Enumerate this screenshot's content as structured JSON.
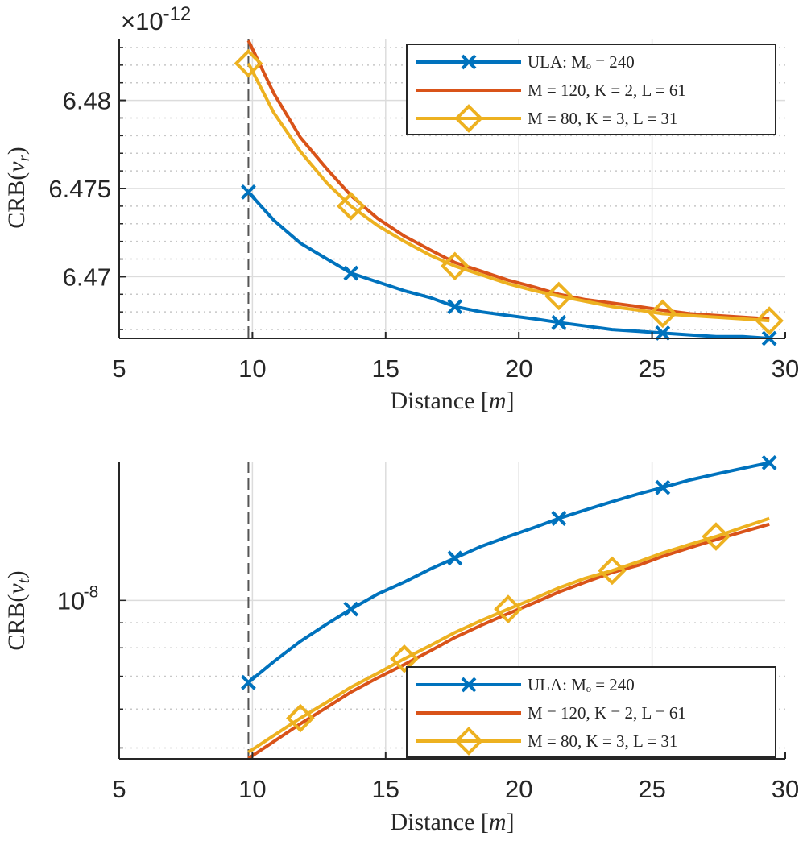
{
  "chart_data": [
    {
      "type": "line",
      "panel": "top",
      "xlabel": "Distance [m]",
      "ylabel": "CRB(v_r)",
      "ylabel_main": "CRB(",
      "ylabel_var": "v",
      "ylabel_sub": "r",
      "ylabel_close": ")",
      "x_unit": "m",
      "y_exponent_label": "×10",
      "y_exponent_power": "-12",
      "xlim": [
        5,
        30
      ],
      "ylim": [
        6.4665,
        6.4835
      ],
      "xticks": [
        5,
        10,
        15,
        20,
        25,
        30
      ],
      "xtick_labels": [
        "5",
        "10",
        "15",
        "20",
        "25",
        "30"
      ],
      "yticks": [
        6.47,
        6.475,
        6.48
      ],
      "ytick_labels": [
        "6.47",
        "6.475",
        "6.48"
      ],
      "grid": true,
      "legend_position": "top-right",
      "vline_x": 9.85,
      "series": [
        {
          "name": "ULA: M_o = 240",
          "legend_label": "ULA: Mₒ = 240",
          "color": "#0072BD",
          "marker": "x",
          "x": [
            9.85,
            10.8,
            11.8,
            12.8,
            13.7,
            14.7,
            15.7,
            16.7,
            17.6,
            18.6,
            19.6,
            20.6,
            21.5,
            22.5,
            23.5,
            24.5,
            25.4,
            26.4,
            27.4,
            28.4,
            29.4
          ],
          "y": [
            6.4748,
            6.4732,
            6.4719,
            6.471,
            6.4702,
            6.4697,
            6.4692,
            6.4688,
            6.4683,
            6.468,
            6.4678,
            6.4676,
            6.4674,
            6.4672,
            6.467,
            6.4669,
            6.4668,
            6.4667,
            6.4666,
            6.4666,
            6.4665
          ],
          "marker_x": [
            9.85,
            13.7,
            17.6,
            21.5,
            25.4,
            29.4
          ],
          "marker_y": [
            6.4748,
            6.4702,
            6.4683,
            6.4674,
            6.4668,
            6.4665
          ]
        },
        {
          "name": "M = 120, K = 2, L = 61",
          "legend_label": "M = 120, K = 2, L = 61",
          "color": "#D95319",
          "marker": "none",
          "x": [
            9.85,
            10.8,
            11.8,
            12.8,
            13.7,
            14.7,
            15.7,
            16.7,
            17.6,
            18.6,
            19.6,
            20.6,
            21.5,
            22.5,
            23.5,
            24.5,
            25.4,
            26.4,
            27.4,
            28.4,
            29.4
          ],
          "y": [
            6.4834,
            6.4804,
            6.4779,
            6.4761,
            6.4746,
            6.4733,
            6.4723,
            6.4715,
            6.4708,
            6.4703,
            6.4698,
            6.4694,
            6.469,
            6.4687,
            6.4685,
            6.4683,
            6.4681,
            6.4679,
            6.4678,
            6.4677,
            6.4676
          ]
        },
        {
          "name": "M = 80, K = 3, L = 31",
          "legend_label": "M = 80, K = 3, L = 31",
          "color": "#EDB120",
          "marker": "diamond",
          "x": [
            9.85,
            10.8,
            11.8,
            12.8,
            13.7,
            14.7,
            15.7,
            16.7,
            17.6,
            18.6,
            19.6,
            20.6,
            21.5,
            22.5,
            23.5,
            24.5,
            25.4,
            26.4,
            27.4,
            28.4,
            29.4
          ],
          "y": [
            6.4821,
            6.4793,
            6.4771,
            6.4753,
            6.474,
            6.4729,
            6.472,
            6.4712,
            6.4706,
            6.4701,
            6.4696,
            6.4692,
            6.4689,
            6.4686,
            6.4683,
            6.4681,
            6.4679,
            6.4678,
            6.4677,
            6.4676,
            6.4675
          ],
          "marker_x": [
            9.85,
            13.7,
            17.6,
            21.5,
            25.4,
            29.4
          ],
          "marker_y": [
            6.4821,
            6.474,
            6.4706,
            6.4689,
            6.4679,
            6.4675
          ]
        }
      ]
    },
    {
      "type": "line",
      "panel": "bottom",
      "xlabel": "Distance [m]",
      "ylabel": "CRB(v_t)",
      "ylabel_main": "CRB(",
      "ylabel_var": "v",
      "ylabel_sub": "t",
      "ylabel_close": ")",
      "x_unit": "m",
      "yscale": "log",
      "xlim": [
        5,
        30
      ],
      "ylim": [
        4.75e-09,
        1.92e-08
      ],
      "xticks": [
        5,
        10,
        15,
        20,
        25,
        30
      ],
      "xtick_labels": [
        "5",
        "10",
        "15",
        "20",
        "25",
        "30"
      ],
      "yticks": [
        1e-08
      ],
      "ytick_labels": [
        "10"
      ],
      "ytick_exp": "-8",
      "grid": true,
      "legend_position": "bottom-right",
      "vline_x": 9.85,
      "series": [
        {
          "name": "ULA: M_o = 240",
          "legend_label": "ULA: Mₒ = 240",
          "color": "#0072BD",
          "marker": "x",
          "x": [
            9.85,
            10.8,
            11.8,
            12.8,
            13.7,
            14.7,
            15.7,
            16.7,
            17.6,
            18.6,
            19.6,
            20.6,
            21.5,
            22.5,
            23.5,
            24.5,
            25.4,
            26.4,
            27.4,
            28.4,
            29.4
          ],
          "y": [
            6.8e-09,
            7.5e-09,
            8.25e-09,
            8.95e-09,
            9.6e-09,
            1.03e-08,
            1.09e-08,
            1.16e-08,
            1.22e-08,
            1.29e-08,
            1.35e-08,
            1.41e-08,
            1.47e-08,
            1.53e-08,
            1.59e-08,
            1.65e-08,
            1.7e-08,
            1.76e-08,
            1.81e-08,
            1.86e-08,
            1.91e-08
          ],
          "marker_x": [
            9.85,
            13.7,
            17.6,
            21.5,
            25.4,
            29.4
          ],
          "marker_y": [
            6.8e-09,
            9.6e-09,
            1.22e-08,
            1.47e-08,
            1.7e-08,
            1.91e-08
          ]
        },
        {
          "name": "M = 120, K = 2, L = 61",
          "legend_label": "M = 120, K = 2, L = 61",
          "color": "#D95319",
          "marker": "none",
          "x": [
            9.85,
            10.8,
            11.8,
            12.8,
            13.7,
            14.7,
            15.7,
            16.7,
            17.6,
            18.6,
            19.6,
            20.6,
            21.5,
            22.5,
            23.5,
            24.5,
            25.4,
            26.4,
            27.4,
            28.4,
            29.4
          ],
          "y": [
            4.76e-09,
            5.15e-09,
            5.6e-09,
            6.05e-09,
            6.5e-09,
            6.95e-09,
            7.4e-09,
            7.9e-09,
            8.4e-09,
            8.9e-09,
            9.4e-09,
            9.9e-09,
            1.04e-08,
            1.09e-08,
            1.14e-08,
            1.18e-08,
            1.23e-08,
            1.28e-08,
            1.33e-08,
            1.38e-08,
            1.43e-08
          ]
        },
        {
          "name": "M = 80, K = 3, L = 31",
          "legend_label": "M = 80, K = 3, L = 31",
          "color": "#EDB120",
          "marker": "diamond",
          "x": [
            9.85,
            10.8,
            11.8,
            12.8,
            13.7,
            14.7,
            15.7,
            16.7,
            17.6,
            18.6,
            19.6,
            20.6,
            21.5,
            22.5,
            23.5,
            24.5,
            25.4,
            26.4,
            27.4,
            28.4,
            29.4
          ],
          "y": [
            4.9e-09,
            5.3e-09,
            5.75e-09,
            6.2e-09,
            6.65e-09,
            7.1e-09,
            7.6e-09,
            8.1e-09,
            8.6e-09,
            9.1e-09,
            9.6e-09,
            1.01e-08,
            1.06e-08,
            1.11e-08,
            1.15e-08,
            1.2e-08,
            1.25e-08,
            1.3e-08,
            1.35e-08,
            1.41e-08,
            1.47e-08
          ],
          "marker_x": [
            11.8,
            15.7,
            19.6,
            23.5,
            27.4
          ],
          "marker_y": [
            5.75e-09,
            7.6e-09,
            9.6e-09,
            1.15e-08,
            1.35e-08
          ]
        }
      ]
    }
  ]
}
